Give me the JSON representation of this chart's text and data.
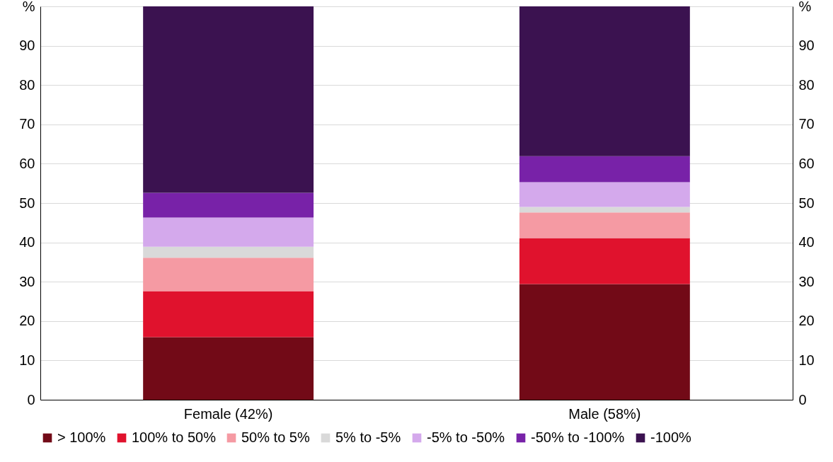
{
  "chart_data": {
    "type": "bar",
    "stacked": true,
    "categories": [
      "Female (42%)",
      "Male (58%)"
    ],
    "series": [
      {
        "name": "> 100%",
        "color": "#720a17",
        "values": [
          15.9,
          29.4
        ]
      },
      {
        "name": "100% to 50%",
        "color": "#e0122d",
        "values": [
          11.7,
          11.7
        ]
      },
      {
        "name": "50% to 5%",
        "color": "#f59aa3",
        "values": [
          8.5,
          6.5
        ]
      },
      {
        "name": "5% to -5%",
        "color": "#d9d9d9",
        "values": [
          2.8,
          1.4
        ]
      },
      {
        "name": "-5% to -50%",
        "color": "#d4a9ec",
        "values": [
          7.4,
          6.3
        ]
      },
      {
        "name": "-50% to -100%",
        "color": "#7822a8",
        "values": [
          6.3,
          6.6
        ]
      },
      {
        "name": "-100%",
        "color": "#3b1250",
        "values": [
          47.4,
          38.1
        ]
      }
    ],
    "ylim": [
      0,
      100
    ],
    "yticks": [
      0,
      10,
      20,
      30,
      40,
      50,
      60,
      70,
      80,
      90,
      {
        "value": 100,
        "label": "%"
      }
    ],
    "y2lim": [
      0,
      100
    ],
    "y2ticks": [
      0,
      10,
      20,
      30,
      40,
      50,
      60,
      70,
      80,
      90,
      {
        "value": 100,
        "label": "%"
      }
    ],
    "grid": "y",
    "legend": "bottom"
  }
}
